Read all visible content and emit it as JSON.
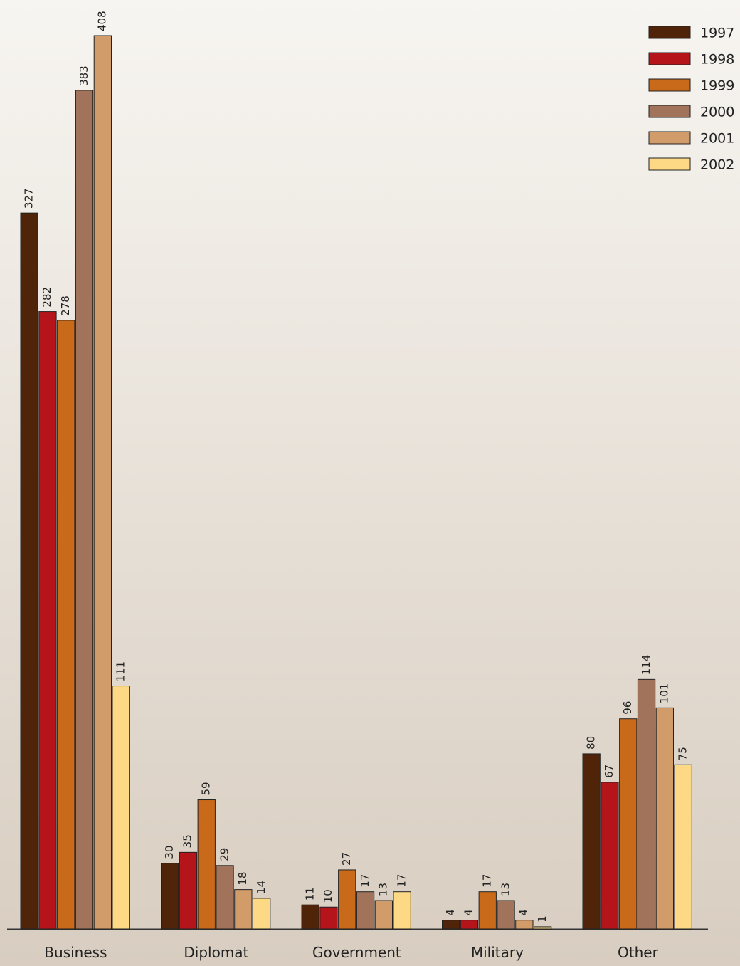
{
  "chart_data": {
    "type": "bar",
    "categories": [
      "Business",
      "Diplomat",
      "Government",
      "Military",
      "Other"
    ],
    "series": [
      {
        "name": "1997",
        "color": "#4f2408",
        "values": [
          327,
          30,
          11,
          4,
          80
        ]
      },
      {
        "name": "1998",
        "color": "#b5141b",
        "values": [
          282,
          35,
          10,
          4,
          67
        ]
      },
      {
        "name": "1999",
        "color": "#c86a1a",
        "values": [
          278,
          59,
          27,
          17,
          96
        ]
      },
      {
        "name": "2000",
        "color": "#a0735a",
        "values": [
          383,
          29,
          17,
          13,
          114
        ]
      },
      {
        "name": "2001",
        "color": "#d29b6a",
        "values": [
          408,
          18,
          13,
          4,
          101
        ]
      },
      {
        "name": "2002",
        "color": "#fdd985",
        "values": [
          111,
          14,
          17,
          1,
          75
        ]
      }
    ],
    "legend": "top-right"
  }
}
